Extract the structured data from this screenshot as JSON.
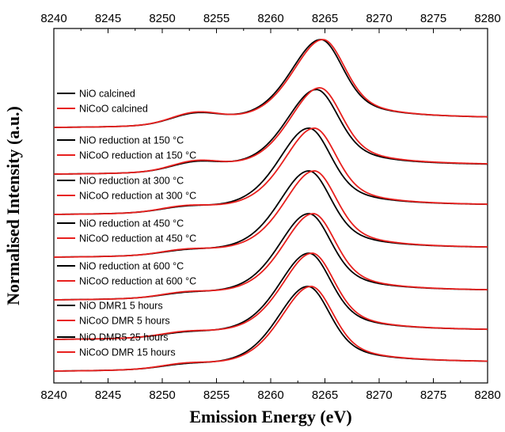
{
  "chart_data": {
    "type": "line",
    "title": "",
    "xlabel": "Emission Energy (eV)",
    "ylabel": "Normalised Intensity (a.u.)",
    "xlim": [
      8240,
      8280
    ],
    "x_ticks": [
      "8240",
      "8245",
      "8250",
      "8255",
      "8260",
      "8265",
      "8270",
      "8275",
      "8280"
    ],
    "grid": false,
    "legend_placement": "left, one legend pair per stacked spectrum",
    "colors": {
      "NiO": "#000000",
      "NiCoO": "#e8201e"
    },
    "groups": [
      {
        "series": [
          {
            "name": "NiO calcined",
            "color": "#000000",
            "peak_eV": 8264.6,
            "peak_height": 1.0,
            "shoulder_eV": 8253.0,
            "shoulder_height": 0.12
          },
          {
            "name": "NiCoO calcined",
            "color": "#e8201e",
            "peak_eV": 8264.8,
            "peak_height": 1.0,
            "shoulder_eV": 8253.0,
            "shoulder_height": 0.13
          }
        ]
      },
      {
        "series": [
          {
            "name": "NiO reduction at 150 °C",
            "color": "#000000",
            "peak_eV": 8264.2,
            "peak_height": 0.98,
            "shoulder_eV": 8253.0,
            "shoulder_height": 0.1
          },
          {
            "name": "NiCoO reduction at 150 °C",
            "color": "#e8201e",
            "peak_eV": 8264.5,
            "peak_height": 1.0,
            "shoulder_eV": 8253.0,
            "shoulder_height": 0.11
          }
        ]
      },
      {
        "series": [
          {
            "name": "NiO reduction at 300 °C",
            "color": "#000000",
            "peak_eV": 8263.5,
            "peak_height": 1.0,
            "shoulder_eV": 8252.0,
            "shoulder_height": 0.05
          },
          {
            "name": "NiCoO reduction at 300 °C",
            "color": "#e8201e",
            "peak_eV": 8264.0,
            "peak_height": 1.0,
            "shoulder_eV": 8252.0,
            "shoulder_height": 0.06
          }
        ]
      },
      {
        "series": [
          {
            "name": "NiO reduction at 450 °C",
            "color": "#000000",
            "peak_eV": 8263.5,
            "peak_height": 1.0,
            "shoulder_eV": 8252.0,
            "shoulder_height": 0.04
          },
          {
            "name": "NiCoO reduction at 450 °C",
            "color": "#e8201e",
            "peak_eV": 8264.0,
            "peak_height": 1.0,
            "shoulder_eV": 8252.0,
            "shoulder_height": 0.05
          }
        ]
      },
      {
        "series": [
          {
            "name": "NiO reduction at 600 °C",
            "color": "#000000",
            "peak_eV": 8263.5,
            "peak_height": 1.0,
            "shoulder_eV": 8252.0,
            "shoulder_height": 0.04
          },
          {
            "name": "NiCoO reduction at 600 °C",
            "color": "#e8201e",
            "peak_eV": 8263.9,
            "peak_height": 1.0,
            "shoulder_eV": 8252.0,
            "shoulder_height": 0.05
          }
        ]
      },
      {
        "series": [
          {
            "name": "NiO DMR1 5 hours",
            "color": "#000000",
            "peak_eV": 8263.5,
            "peak_height": 1.0,
            "shoulder_eV": 8252.0,
            "shoulder_height": 0.04
          },
          {
            "name": "NiCoO DMR 5 hours",
            "color": "#e8201e",
            "peak_eV": 8263.8,
            "peak_height": 1.0,
            "shoulder_eV": 8252.0,
            "shoulder_height": 0.05
          }
        ]
      },
      {
        "series": [
          {
            "name": "NiO DMR5 25 hours",
            "color": "#000000",
            "peak_eV": 8263.4,
            "peak_height": 1.0,
            "shoulder_eV": 8252.0,
            "shoulder_height": 0.04
          },
          {
            "name": "NiCoO DMR 15 hours",
            "color": "#e8201e",
            "peak_eV": 8263.7,
            "peak_height": 1.0,
            "shoulder_eV": 8252.0,
            "shoulder_height": 0.05
          }
        ]
      }
    ]
  }
}
